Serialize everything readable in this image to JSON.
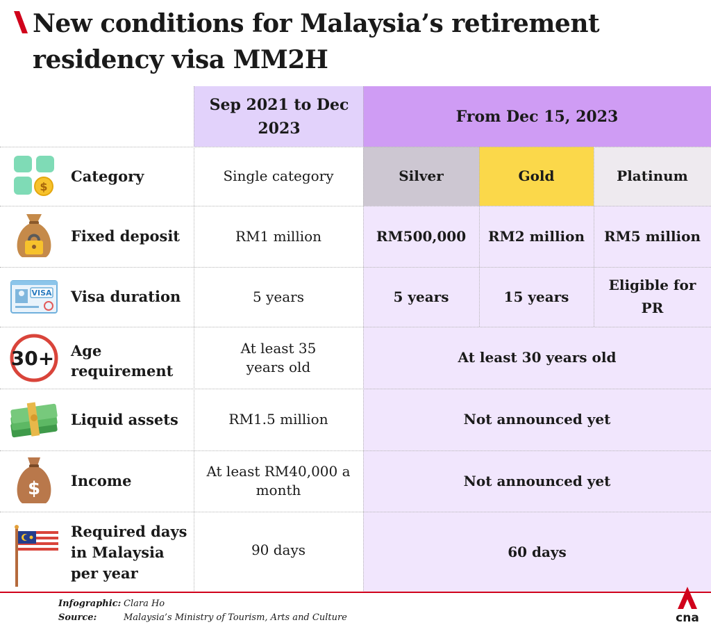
{
  "title": "New conditions for Malaysia’s retirement residency visa MM2H",
  "colors": {
    "accent_red": "#d0021b",
    "period_old": "#e2d2fb",
    "period_new": "#cf9cf4",
    "new_cells": "#f1e6fd",
    "silver": "#cdc7d2",
    "gold": "#fbd84a",
    "platinum": "#eeeaef"
  },
  "headers": {
    "old_period": "Sep 2021 to Dec 2023",
    "new_period": "From Dec 15, 2023"
  },
  "rows": [
    {
      "label": "Category",
      "icon": "category-grid-icon",
      "old": "Single category",
      "silver": "Silver",
      "gold": "Gold",
      "platinum": "Platinum"
    },
    {
      "label": "Fixed deposit",
      "icon": "locked-money-bag-icon",
      "old": "RM1 million",
      "silver": "RM500,000",
      "gold": "RM2 million",
      "platinum": "RM5 million"
    },
    {
      "label": "Visa duration",
      "icon": "visa-card-icon",
      "old": "5 years",
      "silver": "5 years",
      "gold": "15 years",
      "platinum": "Eligible for PR"
    },
    {
      "label": "Age requirement",
      "icon": "age-30-plus-icon",
      "old": "At least 35 years old",
      "new": "At least 30 years old"
    },
    {
      "label": "Liquid assets",
      "icon": "cash-stack-icon",
      "old": "RM1.5 million",
      "new": "Not announced yet"
    },
    {
      "label": "Income",
      "icon": "dollar-money-bag-icon",
      "old": "At least RM40,000 a month",
      "new": "Not announced yet"
    },
    {
      "label": "Required days in Malaysia per year",
      "icon": "malaysia-flag-icon",
      "old": "90 days",
      "new": "60 days"
    }
  ],
  "credits": {
    "infographic_label": "Infographic:",
    "infographic_value": "Clara Ho",
    "source_label": "Source:",
    "source_value": "Malaysia’s Ministry of Tourism, Arts and Culture"
  },
  "logo_text": "cna"
}
